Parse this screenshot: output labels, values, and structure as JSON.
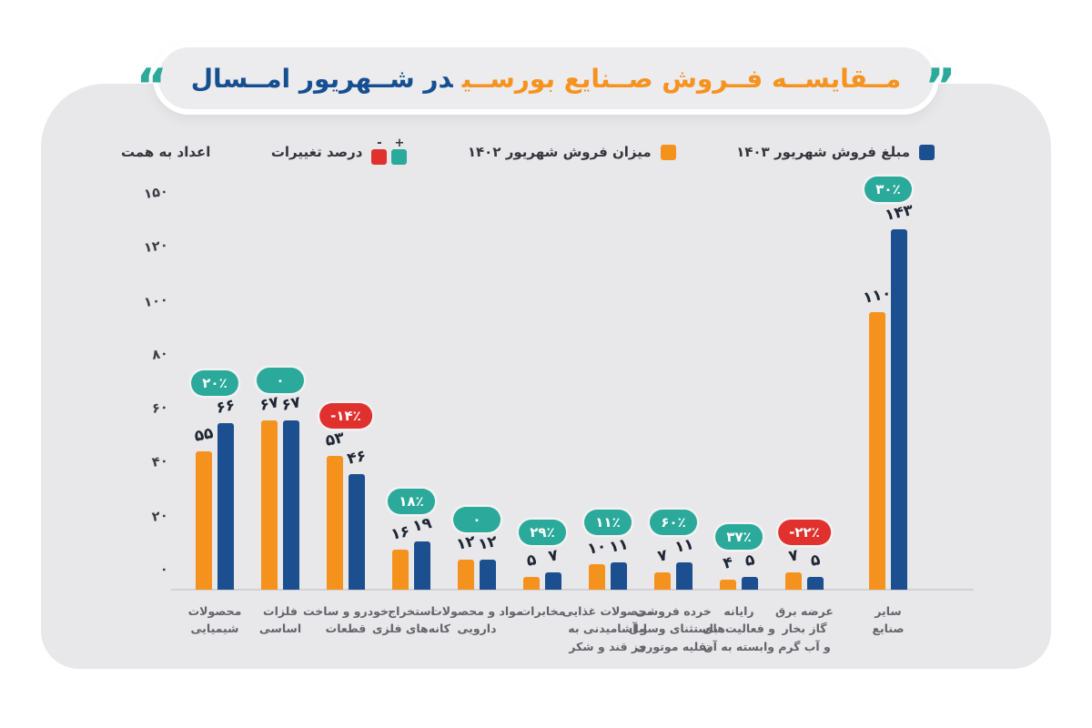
{
  "title": {
    "part_industries": "مــقایســه فــروش صــنایع بورســی",
    "part_month": "در شــهریور امــسال",
    "quote_left": "“",
    "quote_right": "”"
  },
  "legend": {
    "series_1403_label": "مبلغ فروش شهریور ۱۴۰۳",
    "series_1402_label": "میزان فروش شهریور ۱۴۰۲",
    "changes_label": "درصد تغییرات",
    "plus_sign": "+",
    "minus_sign": "-",
    "unit_note": "اعداد به همت"
  },
  "colors": {
    "orange": "#F5921E",
    "blue": "#1C4F8F",
    "teal": "#2BA99B",
    "red": "#E0312E",
    "title_orange": "#F6921E",
    "title_blue": "#164F90",
    "card_bg": "#E8E7E9"
  },
  "chart_data": {
    "type": "bar",
    "direction": "rtl",
    "title": "مقایسه فروش صنایع بورسی در شهریور امسال",
    "unit_note": "اعداد به همت",
    "legend_position": "top",
    "grid": false,
    "y_ticks": [
      150,
      120,
      100,
      80,
      60,
      40,
      20,
      0
    ],
    "y_ticks_fa": [
      "۱۵۰",
      "۱۲۰",
      "۱۰۰",
      "۸۰",
      "۶۰",
      "۴۰",
      "۲۰",
      "۰"
    ],
    "categories": [
      {
        "label": "محصولات شیمیایی",
        "lines": [
          "محصولات",
          "شیمیایی"
        ]
      },
      {
        "label": "فلزات اساسی",
        "lines": [
          "فلزات",
          "اساسی"
        ]
      },
      {
        "label": "خودرو و ساخت قطعات",
        "lines": [
          "خودرو و ساخت",
          "قطعات"
        ]
      },
      {
        "label": "استخراج کانه‌های فلزی",
        "lines": [
          "استخراج",
          "کانه‌های فلزی"
        ]
      },
      {
        "label": "مواد و محصولات دارویی",
        "lines": [
          "مواد و محصولات",
          "دارویی"
        ]
      },
      {
        "label": "مخابرات",
        "lines": [
          "مخابرات"
        ]
      },
      {
        "label": "محصولات غذایی و آشامیدنی به جز قند و شکر",
        "lines": [
          "محصولات غذایی",
          "و آشامیدنی به",
          "جز قند و شکر"
        ]
      },
      {
        "label": "خرده فروشی باستثنای وسایل نقلیه موتوری",
        "lines": [
          "خرده فروشی",
          "باستثنای وسایل",
          "نقلیه موتوری"
        ]
      },
      {
        "label": "رایانه و فعالیت‌های وابسته به آن",
        "lines": [
          "رایانه",
          "و فعالیت‌های",
          "وابسته به آن"
        ]
      },
      {
        "label": "عرضه برق گاز بخار و آب گرم",
        "lines": [
          "عرضه برق",
          "گاز بخار",
          "و آب گرم"
        ]
      },
      {
        "label": "سایر صنایع",
        "lines": [
          "سایر",
          "صنایع"
        ]
      }
    ],
    "series": [
      {
        "name": "میزان فروش شهریور ۱۴۰۲",
        "color_key": "orange",
        "values": [
          55,
          67,
          53,
          16,
          12,
          5,
          10,
          7,
          4,
          7,
          110
        ],
        "values_fa": [
          "۵۵",
          "۶۷",
          "۵۳",
          "۱۶",
          "۱۲",
          "۵",
          "۱۰",
          "۷",
          "۴",
          "۷",
          "۱۱۰"
        ]
      },
      {
        "name": "مبلغ فروش شهریور ۱۴۰۳",
        "color_key": "blue",
        "values": [
          66,
          67,
          46,
          19,
          12,
          7,
          11,
          11,
          5,
          5,
          143
        ],
        "values_fa": [
          "۶۶",
          "۶۷",
          "۴۶",
          "۱۹",
          "۱۲",
          "۷",
          "۱۱",
          "۱۱",
          "۵",
          "۵",
          "۱۴۳"
        ]
      }
    ],
    "changes_pct": [
      20,
      0,
      -14,
      18,
      0,
      29,
      11,
      60,
      37,
      -22,
      30
    ],
    "changes_fa": [
      "۲۰٪",
      "۰",
      "-۱۴٪",
      "۱۸٪",
      "۰",
      "۲۹٪",
      "۱۱٪",
      "۶۰٪",
      "۳۷٪",
      "-۲۲٪",
      "۳۰٪"
    ]
  }
}
